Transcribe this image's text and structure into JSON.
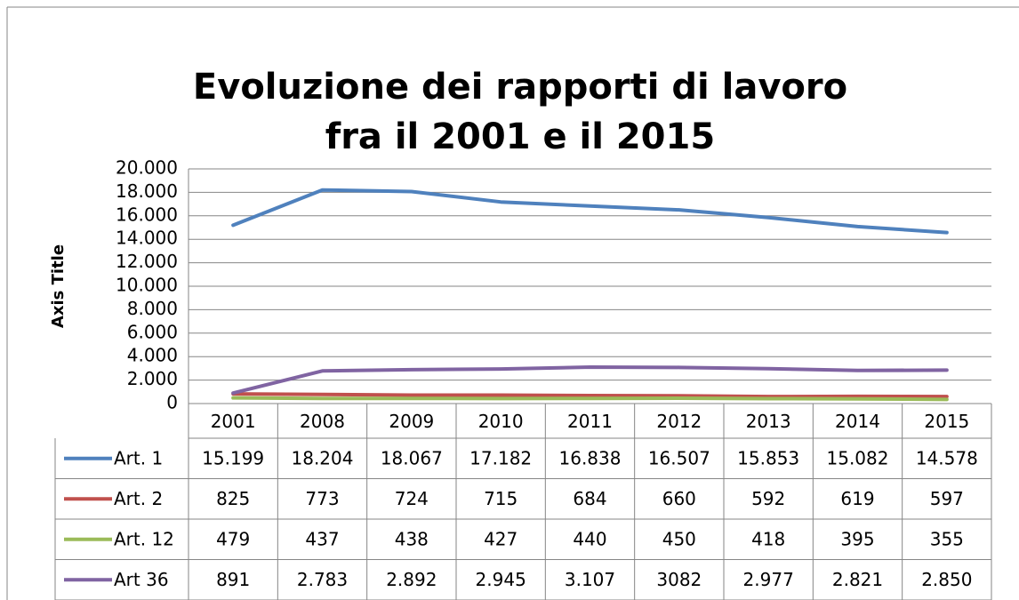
{
  "chart_data": {
    "type": "line",
    "title": [
      "Evoluzione dei rapporti di lavoro",
      "fra il 2001 e il 2015"
    ],
    "y_label": "Axis Title",
    "categories": [
      "2001",
      "2008",
      "2009",
      "2010",
      "2011",
      "2012",
      "2013",
      "2014",
      "2015"
    ],
    "series": [
      {
        "name": "Art. 1",
        "color": "#4f81bd",
        "values": [
          15199,
          18204,
          18067,
          17182,
          16838,
          16507,
          15853,
          15082,
          14578
        ],
        "value_labels": [
          "15.199",
          "18.204",
          "18.067",
          "17.182",
          "16.838",
          "16.507",
          "15.853",
          "15.082",
          "14.578"
        ]
      },
      {
        "name": "Art. 2",
        "color": "#c0504d",
        "values": [
          825,
          773,
          724,
          715,
          684,
          660,
          592,
          619,
          597
        ]
      },
      {
        "name": "Art. 12",
        "color": "#9bbb59",
        "values": [
          479,
          437,
          438,
          427,
          440,
          450,
          418,
          395,
          355
        ]
      },
      {
        "name": "Art 36",
        "color": "#8064a2",
        "values": [
          891,
          2783,
          2892,
          2945,
          3107,
          3082,
          2977,
          2821,
          2850
        ],
        "value_labels": [
          "891",
          "2.783",
          "2.892",
          "2.945",
          "3.107",
          "3082",
          "2.977",
          "2.821",
          "2.850"
        ]
      }
    ],
    "ylim": [
      0,
      20000
    ],
    "yticks": [
      0,
      {
        "value": 2000,
        "label": "2.000"
      },
      {
        "value": 4000,
        "label": "4.000"
      },
      {
        "value": 6000,
        "label": "6.000"
      },
      {
        "value": 8000,
        "label": "8.000"
      },
      {
        "value": 10000,
        "label": "10.000"
      },
      {
        "value": 12000,
        "label": "12.000"
      },
      {
        "value": 14000,
        "label": "14.000"
      },
      {
        "value": 16000,
        "label": "16.000"
      },
      {
        "value": 18000,
        "label": "18.000"
      },
      {
        "value": 20000,
        "label": "20.000"
      }
    ],
    "grid": true
  }
}
